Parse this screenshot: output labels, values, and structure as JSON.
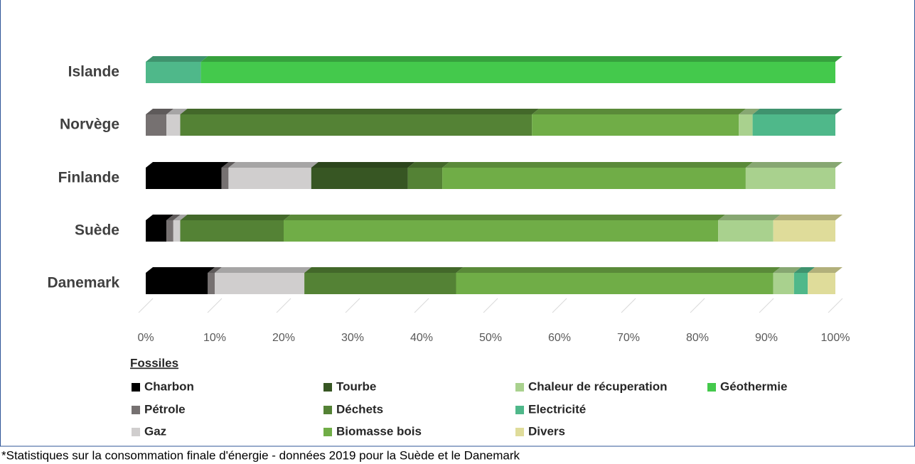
{
  "chart_data": {
    "type": "stacked-bar-horizontal",
    "categories": [
      "Islande",
      "Norvège",
      "Finlande",
      "Suède",
      "Danemark"
    ],
    "legend_title": "Fossiles",
    "series": [
      {
        "name": "Charbon",
        "color": "#000000",
        "values": [
          0,
          0,
          11,
          3,
          9
        ]
      },
      {
        "name": "Pétrole",
        "color": "#767171",
        "values": [
          0,
          3,
          1,
          1,
          1
        ]
      },
      {
        "name": "Gaz",
        "color": "#d0cece",
        "values": [
          0,
          2,
          12,
          1,
          13
        ]
      },
      {
        "name": "Tourbe",
        "color": "#375623",
        "values": [
          0,
          0,
          14,
          0,
          0
        ]
      },
      {
        "name": "Déchets",
        "color": "#548235",
        "values": [
          0,
          51,
          5,
          15,
          22
        ]
      },
      {
        "name": "Biomasse bois",
        "color": "#70ad47",
        "values": [
          0,
          30,
          44,
          63,
          46
        ]
      },
      {
        "name": "Chaleur de récuperation",
        "color": "#a9d18e",
        "values": [
          0,
          2,
          13,
          8,
          3
        ]
      },
      {
        "name": "Electricité",
        "color": "#4fb88a",
        "values": [
          8,
          12,
          0,
          0,
          2
        ]
      },
      {
        "name": "Divers",
        "color": "#dfdc9a",
        "values": [
          0,
          0,
          0,
          9,
          4
        ]
      },
      {
        "name": "Géothermie",
        "color": "#44c94c",
        "values": [
          92,
          0,
          0,
          0,
          0
        ]
      }
    ],
    "xlim": [
      0,
      100
    ],
    "xticks": [
      {
        "value": 0,
        "label": "0%"
      },
      {
        "value": 10,
        "label": "10%"
      },
      {
        "value": 20,
        "label": "20%"
      },
      {
        "value": 30,
        "label": "30%"
      },
      {
        "value": 40,
        "label": "40%"
      },
      {
        "value": 50,
        "label": "50%"
      },
      {
        "value": 60,
        "label": "60%"
      },
      {
        "value": 70,
        "label": "70%"
      },
      {
        "value": 80,
        "label": "80%"
      },
      {
        "value": 90,
        "label": "90%"
      },
      {
        "value": 100,
        "label": "100%"
      }
    ],
    "grid": true,
    "footnote": "*Statistiques sur la consommation finale d'énergie - données 2019 pour la Suède et le Danemark"
  }
}
